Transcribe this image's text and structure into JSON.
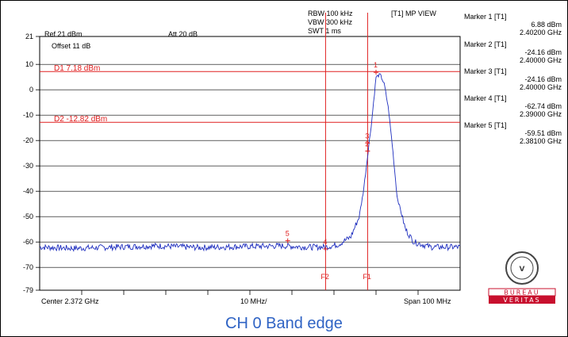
{
  "header": {
    "rbw": "RBW 100 kHz",
    "vbw": "VBW 300 kHz",
    "swt": "SWT 1 ms",
    "trace_view": "[T1] MP VIEW",
    "ref_level": "Ref 21 dBm",
    "attenuation": "Att 20 dB",
    "offset": "Offset 11 dB"
  },
  "y_axis": {
    "ticks": [
      "21",
      "10",
      "0",
      "-10",
      "-20",
      "-30",
      "-40",
      "-50",
      "-60",
      "-70",
      "-79"
    ]
  },
  "x_axis": {
    "center": "Center 2.372 GHz",
    "div": "10 MHz/",
    "span": "Span 100 MHz"
  },
  "lines": {
    "d1": "D1 7.18 dBm",
    "d2": "D2 -12.82 dBm",
    "f1": "F1",
    "f2": "F2"
  },
  "markers": [
    {
      "title": "Marker 1 [T1]",
      "level": "6.88 dBm",
      "freq": "2.40200 GHz",
      "tag": "1"
    },
    {
      "title": "Marker 2 [T1]",
      "level": "-24.16 dBm",
      "freq": "2.40000 GHz",
      "tag": "2"
    },
    {
      "title": "Marker 3 [T1]",
      "level": "-24.16 dBm",
      "freq": "2.40000 GHz",
      "tag": "3"
    },
    {
      "title": "Marker 4 [T1]",
      "level": "-62.74 dBm",
      "freq": "2.39000 GHz",
      "tag": "4"
    },
    {
      "title": "Marker 5 [T1]",
      "level": "-59.51 dBm",
      "freq": "2.38100 GHz",
      "tag": "5"
    }
  ],
  "logo": {
    "line1": "BUREAU",
    "line2": "VERITAS",
    "seal": "BUREAU VERITAS 1828"
  },
  "caption": "CH 0 Band edge",
  "colors": {
    "trace": "#1f2fbf",
    "limit_lines": "#e02020",
    "caption": "#2f63c4",
    "logo_red": "#c8102e"
  },
  "chart_data": {
    "type": "line",
    "x_unit": "GHz",
    "y_unit": "dBm",
    "xlim": [
      2.322,
      2.422
    ],
    "ylim": [
      -79,
      21
    ],
    "grid": true,
    "series": [
      {
        "points": [
          [
            2.322,
            -62
          ],
          [
            2.33,
            -62.5
          ],
          [
            2.34,
            -62
          ],
          [
            2.35,
            -61.5
          ],
          [
            2.36,
            -62.2
          ],
          [
            2.37,
            -61.8
          ],
          [
            2.38,
            -61.5
          ],
          [
            2.385,
            -62
          ],
          [
            2.39,
            -62
          ],
          [
            2.393,
            -61
          ],
          [
            2.396,
            -58
          ],
          [
            2.398,
            -50
          ],
          [
            2.399,
            -40
          ],
          [
            2.4,
            -26
          ],
          [
            2.401,
            -12
          ],
          [
            2.402,
            5
          ],
          [
            2.403,
            6
          ],
          [
            2.404,
            2
          ],
          [
            2.405,
            -8
          ],
          [
            2.406,
            -24
          ],
          [
            2.407,
            -42
          ],
          [
            2.409,
            -55
          ],
          [
            2.411,
            -60
          ],
          [
            2.415,
            -62
          ],
          [
            2.422,
            -62
          ]
        ]
      }
    ],
    "annotations": [
      "D1 7.18 dBm",
      "D2 -12.82 dBm",
      "F1",
      "F2",
      "1",
      "2",
      "3",
      "4",
      "5"
    ]
  }
}
